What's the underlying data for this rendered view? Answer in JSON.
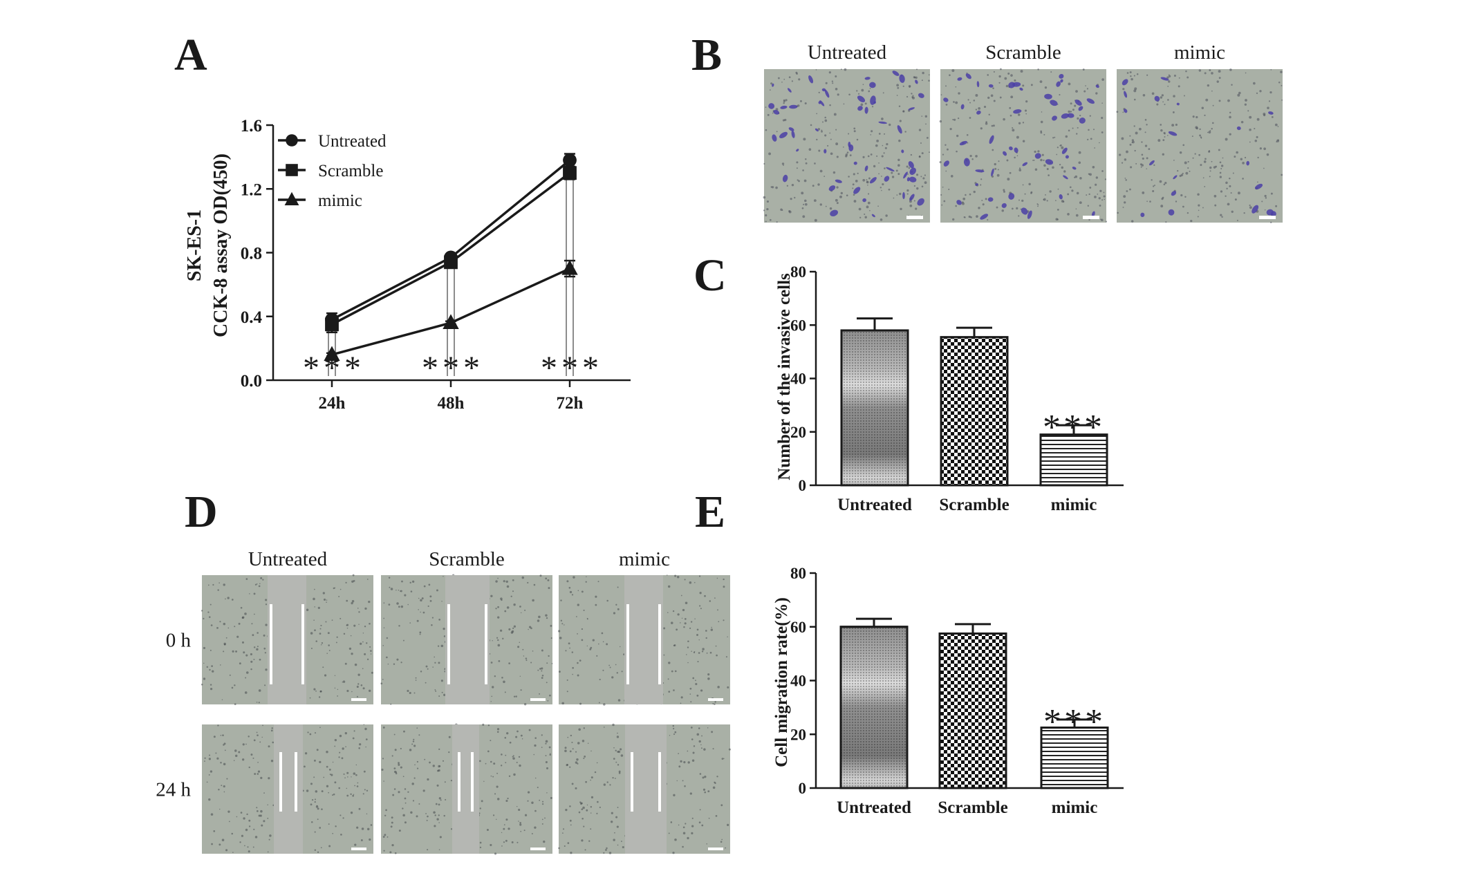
{
  "panels": {
    "A": {
      "letter": "A",
      "chart_data": {
        "type": "line",
        "title": "",
        "xlabel": "",
        "ylabel_line1": "SK-ES-1",
        "ylabel_line2": "CCK-8 assay OD(450)",
        "categories": [
          "24h",
          "48h",
          "72h"
        ],
        "yticks": [
          "0.0",
          "0.4",
          "0.8",
          "1.2",
          "1.6"
        ],
        "ylim": [
          0,
          1.6
        ],
        "legend_position": "top-left",
        "grid": false,
        "significance": [
          "***",
          "***",
          "***"
        ],
        "series": [
          {
            "name": "Untreated",
            "marker": "circle",
            "values": [
              0.38,
              0.77,
              1.38
            ],
            "errors": [
              0.04,
              0.02,
              0.04
            ]
          },
          {
            "name": "Scramble",
            "marker": "square",
            "values": [
              0.35,
              0.74,
              1.3
            ],
            "errors": [
              0.05,
              0.02,
              0.04
            ]
          },
          {
            "name": "mimic",
            "marker": "triangle",
            "values": [
              0.16,
              0.36,
              0.7
            ],
            "errors": [
              0.01,
              0.01,
              0.05
            ]
          }
        ]
      }
    },
    "B": {
      "letter": "B",
      "labels": [
        "Untreated",
        "Scramble",
        "mimic"
      ],
      "density": [
        1.0,
        0.9,
        0.35
      ]
    },
    "C": {
      "letter": "C",
      "chart_data": {
        "type": "bar",
        "title": "",
        "xlabel": "",
        "ylabel": "Number of the invasive cells",
        "categories": [
          "Untreated",
          "Scramble",
          "mimic"
        ],
        "values": [
          58,
          55.5,
          19
        ],
        "errors": [
          4.5,
          3.5,
          3.5
        ],
        "yticks": [
          "0",
          "20",
          "40",
          "60",
          "80"
        ],
        "ylim": [
          0,
          80
        ],
        "significance": [
          "",
          "",
          "***"
        ],
        "patterns": [
          "grey-gradient",
          "checker",
          "hlines"
        ]
      }
    },
    "D": {
      "letter": "D",
      "columns": [
        "Untreated",
        "Scramble",
        "mimic"
      ],
      "rows": [
        "0 h",
        "24 h"
      ]
    },
    "E": {
      "letter": "E",
      "chart_data": {
        "type": "bar",
        "title": "",
        "xlabel": "",
        "ylabel": "Cell migration rate(%)",
        "categories": [
          "Untreated",
          "Scramble",
          "mimic"
        ],
        "values": [
          60,
          57.5,
          22.5
        ],
        "errors": [
          3,
          3.5,
          3
        ],
        "yticks": [
          "0",
          "20",
          "40",
          "60",
          "80"
        ],
        "ylim": [
          0,
          80
        ],
        "significance": [
          "",
          "",
          "***"
        ],
        "patterns": [
          "grey-gradient",
          "checker",
          "hlines"
        ]
      }
    }
  },
  "colors": {
    "ink": "#1a1a1a",
    "micrograph_bg": "#a9b0a6",
    "stain": "#4b3fa6",
    "wound_bg": "#b5b7b3",
    "wound_line": "#ffffff"
  }
}
